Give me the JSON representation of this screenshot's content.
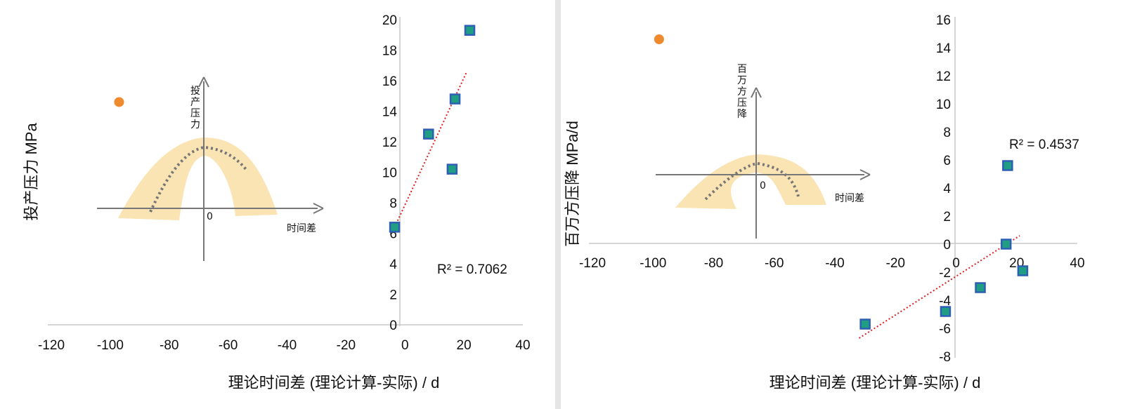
{
  "chart_data": [
    {
      "type": "scatter",
      "xlabel": "理论时间差 (理论计算-实际) / d",
      "ylabel": "投产压力 MPa",
      "xlim": [
        -120,
        40
      ],
      "ylim": [
        0,
        20
      ],
      "xticks": [
        -120,
        -100,
        -80,
        -60,
        -40,
        -20,
        0,
        20,
        40
      ],
      "yticks": [
        0,
        2,
        4,
        6,
        8,
        10,
        12,
        14,
        16,
        18,
        20
      ],
      "points": [
        [
          -3.5,
          6.4
        ],
        [
          8,
          12.5
        ],
        [
          16,
          10.2
        ],
        [
          17,
          14.8
        ],
        [
          22,
          19.3
        ]
      ],
      "outlier": [
        -97,
        14.6
      ],
      "trendline": {
        "x": [
          -3.5,
          21
        ],
        "y": [
          6.4,
          16.6
        ],
        "style": "dotted",
        "color": "#e02020"
      },
      "r2_label": "R² = 0.7062",
      "inset": {
        "y_label": "投产压力",
        "x_label": "时间差",
        "origin_label": "0"
      },
      "grid": false,
      "colors": {
        "marker_fill": "#1f9e84",
        "marker_edge": "#2d5fb4",
        "outlier": "#ef8a2e",
        "band": "#fbe4b3",
        "curve": "#777777"
      }
    },
    {
      "type": "scatter",
      "xlabel": "理论时间差 (理论计算-实际) / d",
      "ylabel": "百万方压降 MPa/d",
      "xlim": [
        -120,
        40
      ],
      "ylim": [
        -8,
        16
      ],
      "xticks": [
        -120,
        -100,
        -80,
        -60,
        -40,
        -20,
        0,
        20,
        40
      ],
      "yticks": [
        -8,
        -6,
        -4,
        -2,
        0,
        2,
        4,
        6,
        8,
        10,
        12,
        14,
        16
      ],
      "points": [
        [
          -30,
          -5.7
        ],
        [
          -3.5,
          -4.8
        ],
        [
          8,
          -3.1
        ],
        [
          16.5,
          0
        ],
        [
          17,
          5.6
        ],
        [
          22,
          -1.9
        ]
      ],
      "outlier": [
        -98,
        14.6
      ],
      "trendline": {
        "x": [
          -32,
          21
        ],
        "y": [
          -6.7,
          0.6
        ],
        "style": "dotted",
        "color": "#e02020"
      },
      "r2_label": "R² = 0.4537",
      "inset": {
        "y_label": "百万方压降",
        "x_label": "时间差",
        "origin_label": "0"
      },
      "grid": false,
      "colors": {
        "marker_fill": "#1f9e84",
        "marker_edge": "#2d5fb4",
        "outlier": "#ef8a2e",
        "band": "#fbe4b3",
        "curve": "#777777"
      }
    }
  ]
}
